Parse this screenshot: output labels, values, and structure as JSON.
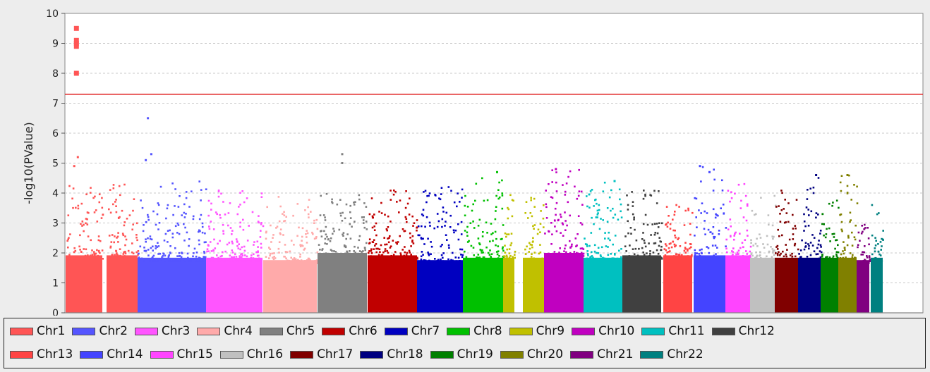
{
  "chart_data": {
    "type": "scatter",
    "title": "",
    "xlabel": "",
    "ylabel": "-log10(PValue)",
    "ylim": [
      0,
      10
    ],
    "yticks": [
      "0",
      "1",
      "2",
      "3",
      "4",
      "5",
      "6",
      "7",
      "8",
      "9",
      "10"
    ],
    "grid": true,
    "legend_position": "bottom",
    "threshold": {
      "value": 7.3,
      "color": "#e02020"
    },
    "series": [
      {
        "name": "Chr1",
        "color": "#ff5555",
        "base": 2.4,
        "peak": 4.3,
        "top_hits": [
          [
            0.15,
            8.0
          ],
          [
            0.15,
            8.9
          ],
          [
            0.15,
            9.0
          ],
          [
            0.15,
            9.1
          ],
          [
            0.15,
            9.5
          ],
          [
            0.12,
            4.9
          ],
          [
            0.17,
            5.2
          ]
        ]
      },
      {
        "name": "Chr2",
        "color": "#5555ff",
        "base": 2.3,
        "peak": 4.4,
        "top_hits": [
          [
            0.15,
            6.5
          ],
          [
            0.2,
            5.3
          ],
          [
            0.12,
            5.1
          ]
        ]
      },
      {
        "name": "Chr3",
        "color": "#ff55ff",
        "base": 2.3,
        "peak": 4.3,
        "top_hits": []
      },
      {
        "name": "Chr4",
        "color": "#ffaaaa",
        "base": 2.2,
        "peak": 3.9,
        "top_hits": []
      },
      {
        "name": "Chr5",
        "color": "#808080",
        "base": 2.5,
        "peak": 4.0,
        "top_hits": [
          [
            0.5,
            5.3
          ],
          [
            0.5,
            5.0
          ]
        ]
      },
      {
        "name": "Chr6",
        "color": "#c00000",
        "base": 2.4,
        "peak": 4.1,
        "top_hits": []
      },
      {
        "name": "Chr7",
        "color": "#0000c0",
        "base": 2.2,
        "peak": 4.2,
        "top_hits": []
      },
      {
        "name": "Chr8",
        "color": "#00c000",
        "base": 2.3,
        "peak": 4.7,
        "top_hits": [
          [
            0.85,
            4.7
          ]
        ]
      },
      {
        "name": "Chr9",
        "color": "#c0c000",
        "base": 2.3,
        "peak": 4.0,
        "top_hits": []
      },
      {
        "name": "Chr10",
        "color": "#c000c0",
        "base": 2.5,
        "peak": 4.8,
        "top_hits": [
          [
            0.3,
            4.8
          ]
        ]
      },
      {
        "name": "Chr11",
        "color": "#00c0c0",
        "base": 2.3,
        "peak": 4.4,
        "top_hits": [
          [
            0.8,
            4.4
          ]
        ]
      },
      {
        "name": "Chr12",
        "color": "#404040",
        "base": 2.4,
        "peak": 4.1,
        "top_hits": []
      },
      {
        "name": "Chr13",
        "color": "#ff4444",
        "base": 2.4,
        "peak": 3.7,
        "top_hits": []
      },
      {
        "name": "Chr14",
        "color": "#4444ff",
        "base": 2.4,
        "peak": 4.9,
        "top_hits": [
          [
            0.2,
            4.9
          ],
          [
            0.5,
            4.7
          ]
        ]
      },
      {
        "name": "Chr15",
        "color": "#ff44ff",
        "base": 2.4,
        "peak": 4.3,
        "top_hits": []
      },
      {
        "name": "Chr16",
        "color": "#c0c0c0",
        "base": 2.3,
        "peak": 4.0,
        "top_hits": []
      },
      {
        "name": "Chr17",
        "color": "#800000",
        "base": 2.3,
        "peak": 4.2,
        "top_hits": []
      },
      {
        "name": "Chr18",
        "color": "#000080",
        "base": 2.3,
        "peak": 4.6,
        "top_hits": [
          [
            0.8,
            4.6
          ]
        ]
      },
      {
        "name": "Chr19",
        "color": "#008000",
        "base": 2.3,
        "peak": 4.2,
        "top_hits": []
      },
      {
        "name": "Chr20",
        "color": "#808000",
        "base": 2.3,
        "peak": 4.6,
        "top_hits": [
          [
            0.5,
            4.6
          ]
        ]
      },
      {
        "name": "Chr21",
        "color": "#800080",
        "base": 2.2,
        "peak": 3.1,
        "top_hits": []
      },
      {
        "name": "Chr22",
        "color": "#008080",
        "base": 2.3,
        "peak": 3.6,
        "top_hits": []
      }
    ]
  }
}
